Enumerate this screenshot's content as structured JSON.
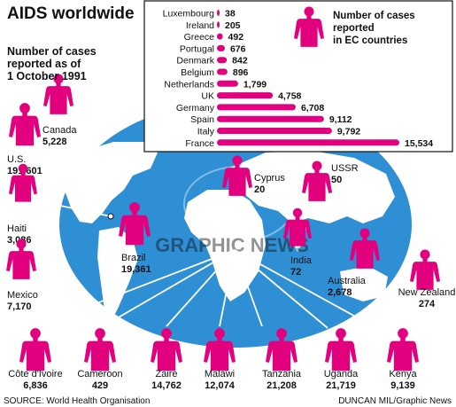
{
  "title": "AIDS worldwide",
  "subtitle": "Number of cases reported as of 1 October 1991",
  "source": "SOURCE: World Health Organisation",
  "credit": "DUNCAN MIL/Graphic News",
  "watermark": "GRAPHIC NEWS",
  "colors": {
    "accent": "#e3007e",
    "ocean": "#2f8fd4",
    "land": "#ffffff"
  },
  "world": {
    "U.S.": "191,601",
    "Canada": "5,228",
    "Haiti": "3,086",
    "Mexico": "7,170",
    "Brazil": "19,361",
    "Cyprus": "20",
    "USSR": "50",
    "India": "72",
    "Australia": "2,678",
    "New Zealand": "274",
    "Côte d'Ivoire": "6,836",
    "Cameroon": "429",
    "Zaire": "14,762",
    "Malawi": "12,074",
    "Tanzania": "21,208",
    "Uganda": "21,719",
    "Kenya": "9,139"
  },
  "chart_data": {
    "type": "bar",
    "title": "Number of cases reported in EC countries",
    "categories": [
      "Luxembourg",
      "Ireland",
      "Greece",
      "Portugal",
      "Denmark",
      "Belgium",
      "Netherlands",
      "UK",
      "Germany",
      "Spain",
      "Italy",
      "France"
    ],
    "values": [
      38,
      205,
      492,
      676,
      842,
      896,
      1799,
      4758,
      6708,
      9112,
      9792,
      15534
    ],
    "value_labels": [
      "38",
      "205",
      "492",
      "676",
      "842",
      "896",
      "1,799",
      "4,758",
      "6,708",
      "9,112",
      "9,792",
      "15,534"
    ],
    "xlim": [
      0,
      15534
    ],
    "grid": false
  }
}
